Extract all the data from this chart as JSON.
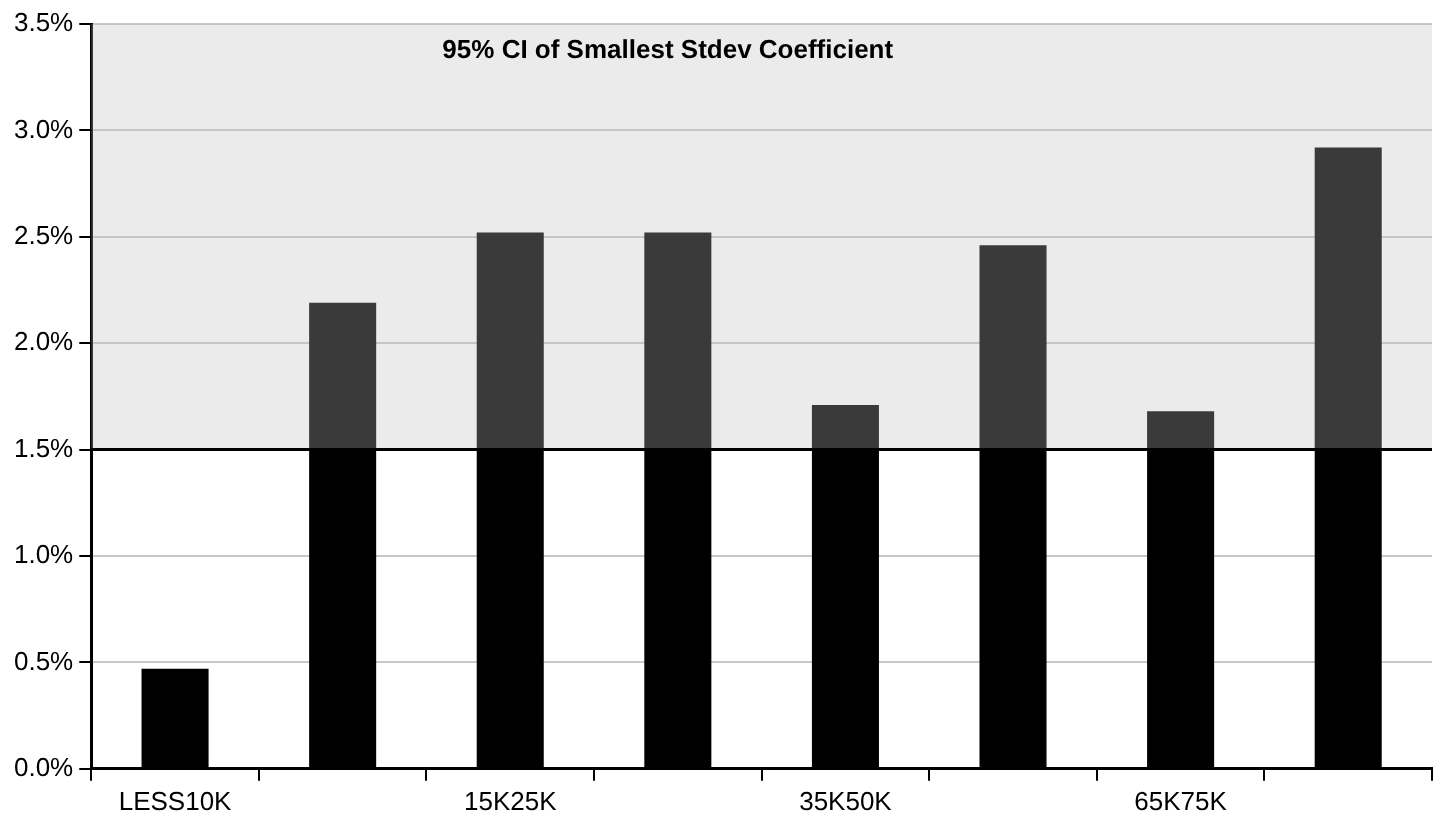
{
  "chart_data": {
    "type": "bar",
    "categories": [
      "LESS10K",
      null,
      "15K25K",
      null,
      "35K50K",
      null,
      "65K75K",
      null
    ],
    "values": [
      0.47,
      2.19,
      2.52,
      2.52,
      1.71,
      2.46,
      1.68,
      2.92
    ],
    "color": "#000000",
    "ylim": [
      0,
      3.5
    ],
    "yticks": [
      {
        "value": 0,
        "label": "0.0%"
      },
      {
        "value": 0.5,
        "label": "0.5%"
      },
      {
        "value": 1,
        "label": "1.0%"
      },
      {
        "value": 1.5,
        "label": "1.5%"
      },
      {
        "value": 2,
        "label": "2.0%"
      },
      {
        "value": 2.5,
        "label": "2.5%"
      },
      {
        "value": 3,
        "label": "3.0%"
      },
      {
        "value": 3.5,
        "label": "3.5%"
      }
    ],
    "bands": [
      {
        "axis": "y",
        "from": 1.5,
        "to": 3.5,
        "label": "95% CI of Smallest Stdev Coefficient"
      }
    ],
    "ref_lines": [
      {
        "axis": "y",
        "value": 1.5,
        "color": "#000000"
      }
    ],
    "grid": "y",
    "legend": false
  }
}
